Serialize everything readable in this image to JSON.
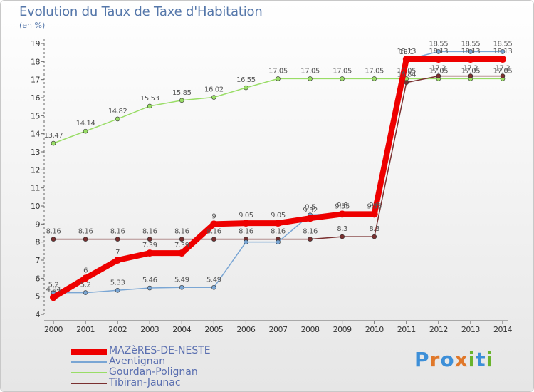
{
  "title": "Evolution du Taux de Taxe d'Habitation",
  "unit": "(en %)",
  "logo": {
    "text": "Proxiti",
    "letters": [
      "P",
      "r",
      "o",
      "x",
      "i",
      "t",
      "i"
    ],
    "colors": [
      "#3d8fd8",
      "#e0782a",
      "#3d8fd8",
      "#e0782a",
      "#6ab42d",
      "#3d8fd8",
      "#6ab42d"
    ]
  },
  "chart_data": {
    "type": "line",
    "x": [
      2000,
      2001,
      2002,
      2003,
      2004,
      2005,
      2006,
      2007,
      2008,
      2009,
      2010,
      2011,
      2012,
      2013,
      2014
    ],
    "ylim": [
      4,
      19
    ],
    "yticks": [
      4,
      5,
      6,
      7,
      8,
      9,
      10,
      11,
      12,
      13,
      14,
      15,
      16,
      17,
      18,
      19
    ],
    "grid": false,
    "legend": "bottom-left",
    "series": [
      {
        "name": "MAZèRES-DE-NESTE",
        "color": "#ee0000",
        "width": 8,
        "values": [
          4.94,
          6,
          7,
          7.39,
          7.39,
          9,
          9.05,
          9.05,
          9.32,
          9.55,
          9.55,
          18.13,
          18.13,
          18.13,
          18.13
        ],
        "labels": [
          "4.94",
          "6",
          "7",
          "7.39",
          "7.39",
          "9",
          "9.05",
          "9.05",
          "9.32",
          "9.55",
          "9.55",
          "18.13",
          "18.13",
          "18.13",
          "18.13"
        ]
      },
      {
        "name": "Aventignan",
        "color": "#7aa6d4",
        "width": 1.5,
        "values": [
          5.2,
          5.2,
          5.33,
          5.46,
          5.49,
          5.49,
          8,
          8,
          9.5,
          9.6,
          9.6,
          18.1,
          18.55,
          18.55,
          18.55
        ],
        "labels": [
          "5.2",
          "5.2",
          "5.33",
          "5.46",
          "5.49",
          "5.49",
          "",
          "",
          "9.5",
          "9.6",
          "9.6",
          "18.1",
          "18.55",
          "18.55",
          "18.55"
        ]
      },
      {
        "name": "Gourdan-Polignan",
        "color": "#99dd66",
        "width": 1.5,
        "values": [
          13.47,
          14.14,
          14.82,
          15.53,
          15.85,
          16.02,
          16.55,
          17.05,
          17.05,
          17.05,
          17.05,
          17.05,
          17.05,
          17.05,
          17.05
        ],
        "labels": [
          "13.47",
          "14.14",
          "14.82",
          "15.53",
          "15.85",
          "16.02",
          "16.55",
          "17.05",
          "17.05",
          "17.05",
          "17.05",
          "17.05",
          "17.05",
          "17.05",
          "17.05"
        ]
      },
      {
        "name": "Tibiran-Jaunac",
        "color": "#7a3030",
        "width": 1.5,
        "values": [
          8.16,
          8.16,
          8.16,
          8.16,
          8.16,
          8.16,
          8.16,
          8.16,
          8.16,
          8.3,
          8.3,
          16.84,
          17.2,
          17.2,
          17.2
        ],
        "labels": [
          "8.16",
          "8.16",
          "8.16",
          "8.16",
          "8.16",
          "8.16",
          "8.16",
          "8.16",
          "8.16",
          "8.3",
          "8.3",
          "16.84",
          "17.2",
          "17.2",
          "17.2"
        ]
      }
    ]
  }
}
